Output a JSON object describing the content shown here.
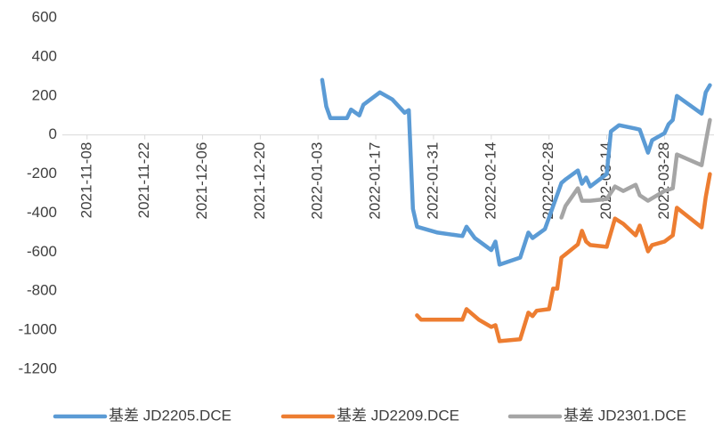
{
  "chart_data": {
    "type": "line",
    "ylim": [
      -1200,
      600
    ],
    "yticks": [
      -1200,
      -1000,
      -800,
      -600,
      -400,
      -200,
      0,
      200,
      400,
      600
    ],
    "xlim": [
      "2021-11-02",
      "2022-04-09"
    ],
    "xticks": [
      "2021-11-08",
      "2021-11-22",
      "2021-12-06",
      "2021-12-20",
      "2022-01-03",
      "2022-01-17",
      "2022-01-31",
      "2022-02-14",
      "2022-02-28",
      "2022-03-14",
      "2022-03-28"
    ],
    "legend": "bottom",
    "series": [
      {
        "name": "基差 JD2205.DCE",
        "color": "#5b9bd5",
        "x": [
          "2022-01-04",
          "2022-01-05",
          "2022-01-06",
          "2022-01-10",
          "2022-01-11",
          "2022-01-13",
          "2022-01-14",
          "2022-01-18",
          "2022-01-21",
          "2022-01-24",
          "2022-01-25",
          "2022-01-26",
          "2022-01-27",
          "2022-02-01",
          "2022-02-07",
          "2022-02-08",
          "2022-02-10",
          "2022-02-14",
          "2022-02-15",
          "2022-02-16",
          "2022-02-21",
          "2022-02-23",
          "2022-02-24",
          "2022-02-27",
          "2022-03-03",
          "2022-03-04",
          "2022-03-07",
          "2022-03-08",
          "2022-03-09",
          "2022-03-10",
          "2022-03-14",
          "2022-03-15",
          "2022-03-17",
          "2022-03-21",
          "2022-03-22",
          "2022-03-24",
          "2022-03-25",
          "2022-03-28",
          "2022-03-29",
          "2022-03-30",
          "2022-03-31",
          "2022-04-06",
          "2022-04-07",
          "2022-04-08"
        ],
        "values": [
          282,
          146,
          86,
          86,
          130,
          100,
          155,
          218,
          182,
          114,
          127,
          -378,
          -470,
          -500,
          -518,
          -470,
          -528,
          -590,
          -546,
          -664,
          -628,
          -500,
          -528,
          -482,
          -246,
          -228,
          -182,
          -250,
          -218,
          -264,
          -200,
          18,
          50,
          32,
          27,
          -91,
          -27,
          9,
          55,
          77,
          200,
          109,
          218,
          255
        ]
      },
      {
        "name": "基差 JD2209.DCE",
        "color": "#ed7d31",
        "x": [
          "2022-01-27",
          "2022-01-28",
          "2022-02-07",
          "2022-02-08",
          "2022-02-11",
          "2022-02-14",
          "2022-02-15",
          "2022-02-16",
          "2022-02-21",
          "2022-02-23",
          "2022-02-24",
          "2022-02-25",
          "2022-02-28",
          "2022-03-01",
          "2022-03-02",
          "2022-03-03",
          "2022-03-07",
          "2022-03-08",
          "2022-03-09",
          "2022-03-10",
          "2022-03-14",
          "2022-03-16",
          "2022-03-18",
          "2022-03-21",
          "2022-03-22",
          "2022-03-24",
          "2022-03-25",
          "2022-03-28",
          "2022-03-30",
          "2022-03-31",
          "2022-04-06",
          "2022-04-07",
          "2022-04-08"
        ],
        "values": [
          -924,
          -946,
          -946,
          -892,
          -946,
          -983,
          -974,
          -1056,
          -1046,
          -910,
          -928,
          -900,
          -892,
          -787,
          -787,
          -628,
          -560,
          -491,
          -546,
          -564,
          -573,
          -428,
          -455,
          -514,
          -464,
          -596,
          -564,
          -546,
          -514,
          -373,
          -473,
          -319,
          -200
        ]
      },
      {
        "name": "基差 JD2301.DCE",
        "color": "#a5a5a5",
        "x": [
          "2022-03-03",
          "2022-03-04",
          "2022-03-07",
          "2022-03-08",
          "2022-03-10",
          "2022-03-14",
          "2022-03-16",
          "2022-03-18",
          "2022-03-21",
          "2022-03-22",
          "2022-03-24",
          "2022-03-28",
          "2022-03-30",
          "2022-03-31",
          "2022-04-06",
          "2022-04-07",
          "2022-04-08"
        ],
        "values": [
          -423,
          -364,
          -273,
          -337,
          -337,
          -328,
          -264,
          -287,
          -255,
          -309,
          -337,
          -287,
          -273,
          -100,
          -155,
          -36,
          77
        ]
      }
    ]
  }
}
